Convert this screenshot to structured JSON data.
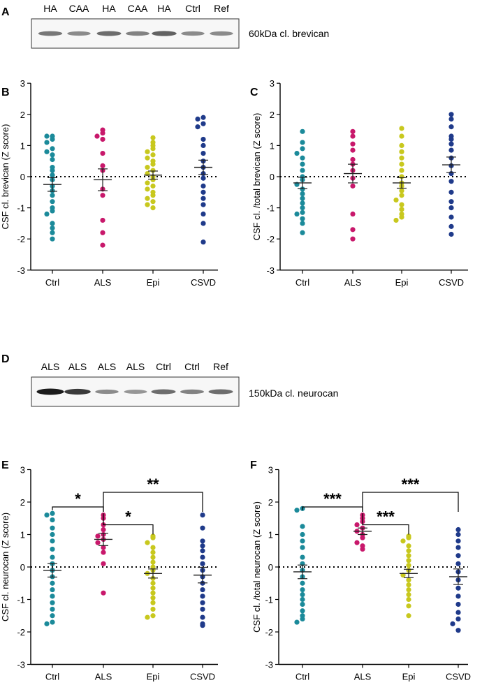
{
  "panel_labels": [
    "A",
    "B",
    "C",
    "D",
    "E",
    "F"
  ],
  "blots": [
    {
      "label": "A",
      "lanes": [
        "HA",
        "CAA",
        "HA",
        "CAA",
        "HA",
        "Ctrl",
        "Ref"
      ],
      "caption": "60kDa cl. brevican",
      "band_intensity": [
        0.55,
        0.45,
        0.6,
        0.5,
        0.65,
        0.45,
        0.45
      ]
    },
    {
      "label": "D",
      "lanes": [
        "ALS",
        "ALS",
        "ALS",
        "ALS",
        "Ctrl",
        "Ctrl",
        "Ref"
      ],
      "caption": "150kDa cl. neurocan",
      "band_intensity": [
        1.0,
        0.85,
        0.45,
        0.4,
        0.6,
        0.5,
        0.6
      ]
    }
  ],
  "colors": {
    "Ctrl": "#1b8a9a",
    "ALS": "#c8186b",
    "Epi": "#c8c81e",
    "CSVD": "#1f3a8a"
  },
  "chart_data": [
    {
      "label": "B",
      "type": "scatter",
      "ylabel": "CSF cl. brevican (Z score)",
      "categories": [
        "Ctrl",
        "ALS",
        "Epi",
        "CSVD"
      ],
      "yticks": [
        "3",
        "2",
        "1",
        "0",
        "-1",
        "-2",
        "-3"
      ],
      "ylim": [
        -3,
        3
      ],
      "series": [
        {
          "name": "Ctrl",
          "values": [
            1.3,
            1.3,
            1.2,
            1.1,
            0.9,
            0.8,
            0.7,
            0.55,
            0.3,
            0.2,
            0.05,
            -0.1,
            -0.3,
            -0.45,
            -0.6,
            -0.8,
            -1.0,
            -1.1,
            -1.2,
            -1.5,
            -1.65,
            -1.8,
            -2.0
          ],
          "mean": -0.25,
          "sem": 0.22
        },
        {
          "name": "ALS",
          "values": [
            1.5,
            1.4,
            1.3,
            1.2,
            0.75,
            0.35,
            0.2,
            -0.4,
            -0.6,
            -1.4,
            -1.8,
            -2.2
          ],
          "mean": -0.1,
          "sem": 0.35
        },
        {
          "name": "Epi",
          "values": [
            1.25,
            1.1,
            1.0,
            0.9,
            0.8,
            0.7,
            0.6,
            0.5,
            0.4,
            0.3,
            0.2,
            0.1,
            0.0,
            -0.1,
            -0.2,
            -0.3,
            -0.4,
            -0.5,
            -0.6,
            -0.7,
            -0.8,
            -0.9,
            -1.0
          ],
          "mean": 0.05,
          "sem": 0.13
        },
        {
          "name": "CSVD",
          "values": [
            1.9,
            1.85,
            1.7,
            1.6,
            1.2,
            1.0,
            0.75,
            0.5,
            0.3,
            0.1,
            -0.05,
            -0.3,
            -0.5,
            -0.7,
            -0.9,
            -1.2,
            -1.5,
            -2.1
          ],
          "mean": 0.3,
          "sem": 0.23
        }
      ]
    },
    {
      "label": "C",
      "type": "scatter",
      "ylabel": "CSF cl. /total brevican (Z score)",
      "categories": [
        "Ctrl",
        "ALS",
        "Epi",
        "CSVD"
      ],
      "yticks": [
        "3",
        "2",
        "1",
        "0",
        "-1",
        "-2",
        "-3"
      ],
      "ylim": [
        -3,
        3
      ],
      "series": [
        {
          "name": "Ctrl",
          "values": [
            1.45,
            1.1,
            0.9,
            0.75,
            0.6,
            0.4,
            0.2,
            0.0,
            -0.1,
            -0.25,
            -0.4,
            -0.55,
            -0.7,
            -0.85,
            -1.0,
            -1.15,
            -1.2,
            -1.35,
            -1.5,
            -1.8
          ],
          "mean": -0.2,
          "sem": 0.18
        },
        {
          "name": "ALS",
          "values": [
            1.45,
            1.3,
            1.05,
            0.85,
            0.55,
            0.4,
            0.2,
            -0.05,
            -0.3,
            -1.2,
            -1.7,
            -2.0
          ],
          "mean": 0.1,
          "sem": 0.3
        },
        {
          "name": "Epi",
          "values": [
            1.55,
            1.3,
            1.0,
            0.8,
            0.6,
            0.4,
            0.2,
            0.0,
            -0.2,
            -0.3,
            -0.45,
            -0.6,
            -0.75,
            -0.9,
            -1.05,
            -1.2,
            -1.3,
            -1.4
          ],
          "mean": -0.2,
          "sem": 0.17
        },
        {
          "name": "CSVD",
          "values": [
            2.0,
            1.85,
            1.6,
            1.3,
            1.2,
            1.05,
            0.85,
            0.6,
            0.35,
            0.1,
            -0.15,
            -0.5,
            -0.8,
            -1.0,
            -1.3,
            -1.6,
            -1.85
          ],
          "mean": 0.38,
          "sem": 0.25
        }
      ]
    },
    {
      "label": "E",
      "type": "scatter",
      "ylabel": "CSF cl. neurocan (Z score)",
      "categories": [
        "Ctrl",
        "ALS",
        "Epi",
        "CSVD"
      ],
      "yticks": [
        "3",
        "2",
        "1",
        "0",
        "-1",
        "-2",
        "-3"
      ],
      "ylim": [
        -3,
        3
      ],
      "series": [
        {
          "name": "Ctrl",
          "values": [
            1.65,
            1.6,
            1.45,
            1.2,
            1.0,
            0.8,
            0.55,
            0.3,
            0.1,
            -0.1,
            -0.3,
            -0.5,
            -0.7,
            -0.9,
            -1.1,
            -1.3,
            -1.5,
            -1.7,
            -1.75
          ],
          "mean": -0.1,
          "sem": 0.21
        },
        {
          "name": "ALS",
          "values": [
            1.6,
            1.5,
            1.3,
            1.15,
            1.0,
            0.95,
            0.85,
            0.75,
            0.6,
            0.45,
            0.1,
            -0.8
          ],
          "mean": 0.85,
          "sem": 0.19
        },
        {
          "name": "Epi",
          "values": [
            0.95,
            0.9,
            0.75,
            0.6,
            0.45,
            0.3,
            0.15,
            0.0,
            -0.1,
            -0.2,
            -0.35,
            -0.5,
            -0.65,
            -0.8,
            -0.95,
            -1.1,
            -1.3,
            -1.5,
            -1.55
          ],
          "mean": -0.2,
          "sem": 0.14
        },
        {
          "name": "CSVD",
          "values": [
            1.6,
            1.2,
            0.8,
            0.65,
            0.5,
            0.3,
            0.1,
            -0.1,
            -0.3,
            -0.5,
            -0.7,
            -0.9,
            -1.1,
            -1.3,
            -1.55,
            -1.75,
            -1.8
          ],
          "mean": -0.25,
          "sem": 0.24
        }
      ],
      "significance": [
        {
          "from": "Ctrl",
          "to": "ALS",
          "stars": "*"
        },
        {
          "from": "ALS",
          "to": "Epi",
          "stars": "*"
        },
        {
          "from": "ALS",
          "to": "CSVD",
          "stars": "**"
        }
      ]
    },
    {
      "label": "F",
      "type": "scatter",
      "ylabel": "CSF cl. /total neurocan (Z score)",
      "categories": [
        "Ctrl",
        "ALS",
        "Epi",
        "CSVD"
      ],
      "yticks": [
        "3",
        "2",
        "1",
        "0",
        "-1",
        "-2",
        "-3"
      ],
      "ylim": [
        -3,
        3
      ],
      "series": [
        {
          "name": "Ctrl",
          "values": [
            1.8,
            1.75,
            1.25,
            1.0,
            0.8,
            0.6,
            0.3,
            0.1,
            -0.1,
            -0.3,
            -0.5,
            -0.7,
            -0.85,
            -1.0,
            -1.15,
            -1.35,
            -1.5,
            -1.6,
            -1.7
          ],
          "mean": -0.15,
          "sem": 0.21
        },
        {
          "name": "ALS",
          "values": [
            1.6,
            1.5,
            1.4,
            1.3,
            1.2,
            1.1,
            1.0,
            0.9,
            0.75,
            0.65,
            0.55
          ],
          "mean": 1.1,
          "sem": 0.1
        },
        {
          "name": "Epi",
          "values": [
            0.95,
            0.9,
            0.8,
            0.65,
            0.5,
            0.35,
            0.2,
            0.05,
            -0.1,
            -0.25,
            -0.4,
            -0.55,
            -0.7,
            -0.85,
            -1.0,
            -1.2,
            -1.5
          ],
          "mean": -0.2,
          "sem": 0.13
        },
        {
          "name": "CSVD",
          "values": [
            1.15,
            1.0,
            0.8,
            0.6,
            0.35,
            0.1,
            -0.15,
            -0.4,
            -0.65,
            -0.9,
            -1.15,
            -1.4,
            -1.6,
            -1.75,
            -1.95
          ],
          "mean": -0.3,
          "sem": 0.24
        }
      ],
      "significance": [
        {
          "from": "Ctrl",
          "to": "ALS",
          "stars": "***"
        },
        {
          "from": "ALS",
          "to": "Epi",
          "stars": "***"
        },
        {
          "from": "ALS",
          "to": "CSVD",
          "stars": "***"
        }
      ]
    }
  ]
}
